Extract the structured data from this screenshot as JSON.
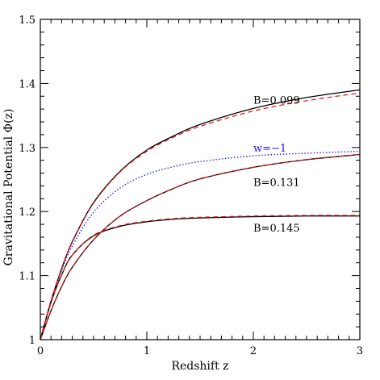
{
  "chart_data": {
    "type": "line",
    "title": "",
    "xlabel": "Redshift z",
    "ylabel": "Gravitational Potential Φ(z)",
    "xlim": [
      0,
      3
    ],
    "ylim": [
      1,
      1.5
    ],
    "x_ticks": [
      "0",
      "1",
      "2",
      "3"
    ],
    "y_ticks": [
      "1",
      "1.1",
      "1.2",
      "1.3",
      "1.4",
      "1.5"
    ],
    "grid": false,
    "legend": "none",
    "colors": {
      "solid": "#000000",
      "dashed": "#e01010",
      "dotted": "#1a1adc"
    },
    "x": [
      0,
      0.1,
      0.2,
      0.3,
      0.5,
      0.75,
      1.0,
      1.25,
      1.5,
      2.0,
      2.5,
      3.0
    ],
    "series": [
      {
        "style": "solid",
        "color": "#000000",
        "values": [
          1.0,
          1.06,
          1.111,
          1.153,
          1.214,
          1.263,
          1.296,
          1.318,
          1.336,
          1.361,
          1.378,
          1.39
        ]
      },
      {
        "style": "dashed",
        "color": "#e01010",
        "values": [
          1.0,
          1.06,
          1.11,
          1.152,
          1.213,
          1.262,
          1.294,
          1.316,
          1.333,
          1.357,
          1.373,
          1.385
        ]
      },
      {
        "style": "dotted",
        "color": "#1a1adc",
        "values": [
          1.0,
          1.06,
          1.108,
          1.146,
          1.199,
          1.237,
          1.258,
          1.27,
          1.278,
          1.287,
          1.291,
          1.294
        ]
      },
      {
        "style": "solid",
        "color": "#000000",
        "values": [
          1.0,
          1.045,
          1.083,
          1.113,
          1.156,
          1.193,
          1.217,
          1.236,
          1.251,
          1.269,
          1.281,
          1.289
        ]
      },
      {
        "style": "dashed",
        "color": "#e01010",
        "values": [
          1.0,
          1.045,
          1.083,
          1.113,
          1.156,
          1.193,
          1.217,
          1.236,
          1.251,
          1.269,
          1.281,
          1.289
        ]
      },
      {
        "style": "solid",
        "color": "#000000",
        "values": [
          1.0,
          1.058,
          1.101,
          1.132,
          1.162,
          1.177,
          1.184,
          1.188,
          1.19,
          1.192,
          1.193,
          1.193
        ]
      },
      {
        "style": "dashed",
        "color": "#e01010",
        "values": [
          1.0,
          1.058,
          1.101,
          1.132,
          1.163,
          1.178,
          1.185,
          1.189,
          1.191,
          1.193,
          1.194,
          1.194
        ]
      }
    ],
    "annotations": [
      {
        "text": "B=0.099",
        "x": 2.0,
        "y": 1.375,
        "color": "#000000"
      },
      {
        "text": "w=−1",
        "x": 2.0,
        "y": 1.3,
        "color": "#1a1adc"
      },
      {
        "text": "B=0.131",
        "x": 2.0,
        "y": 1.246,
        "color": "#000000"
      },
      {
        "text": "B=0.145",
        "x": 2.0,
        "y": 1.175,
        "color": "#000000"
      }
    ]
  }
}
